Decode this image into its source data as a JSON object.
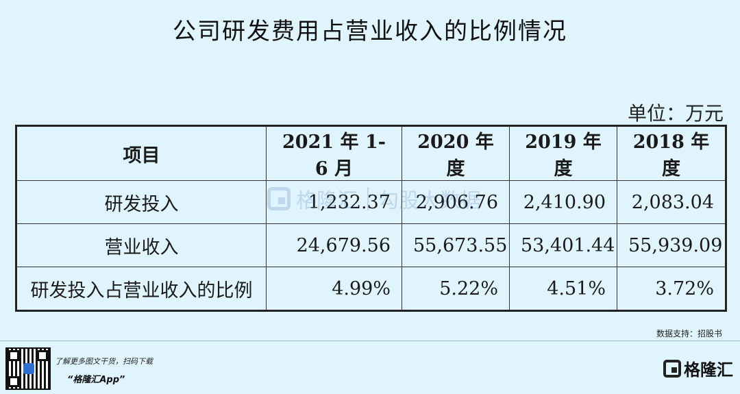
{
  "title": "公司研发费用占营业收入的比例情况",
  "unit_label": "单位：万元",
  "table": {
    "headers": [
      "项目",
      "2021 年 1-6 月",
      "2020 年度",
      "2019 年度",
      "2018 年度"
    ],
    "rows": [
      {
        "label": "研发投入",
        "values": [
          "1,232.37",
          "2,906.76",
          "2,410.90",
          "2,083.04"
        ]
      },
      {
        "label": "营业收入",
        "values": [
          "24,679.56",
          "55,673.55",
          "53,401.44",
          "55,939.09"
        ]
      },
      {
        "label": "研发投入占营业收入的比例",
        "values": [
          "4.99%",
          "5.22%",
          "4.51%",
          "3.72%"
        ]
      }
    ]
  },
  "watermark": {
    "name": "格隆汇",
    "data_label": "勾股大数据"
  },
  "source": "数据支持：招股书",
  "footer": {
    "promo": "了解更多图文干货，扫码下载",
    "app_name": "“格隆汇App”",
    "brand": "格隆汇"
  }
}
